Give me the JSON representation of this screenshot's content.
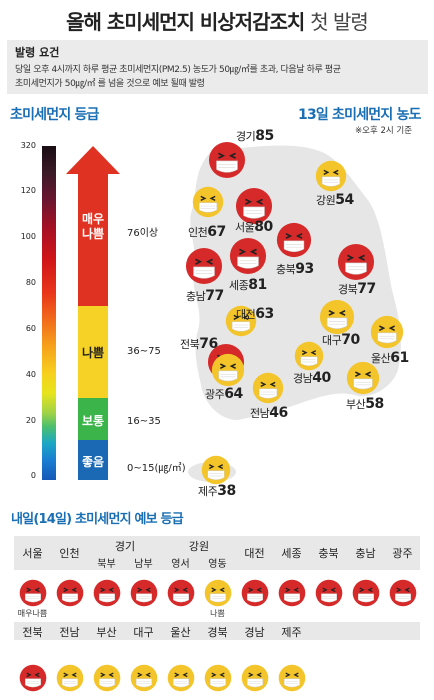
{
  "title": {
    "main": "올해 초미세먼지 비상저감조치",
    "suffix": "첫 발령"
  },
  "notice": {
    "heading": "발령 요건",
    "line1": "당일 오후 4시까지 하루 평균 초미세먼지(PM2.5) 농도가 50㎍/㎥를 초과, 다음날 하루 평균",
    "line2": "초미세먼지가 50㎍/㎥ 를 넘을 것으로 예보 될때 발령"
  },
  "scale": {
    "title": "초미세먼지 등급",
    "ticks": [
      "320",
      "120",
      "100",
      "80",
      "60",
      "40",
      "20",
      "0"
    ],
    "bands": [
      {
        "label": "매우\n나쁨",
        "range": "76이상",
        "color": "#e03222"
      },
      {
        "label": "나쁨",
        "range": "36~75",
        "color": "#f6d126"
      },
      {
        "label": "보통",
        "range": "16~35",
        "color": "#3bb54a"
      },
      {
        "label": "좋음",
        "range": "0~15(㎍/㎥)",
        "color": "#1b69b5"
      }
    ]
  },
  "map": {
    "title": "13일 초미세먼지 농도",
    "note": "※오후 2시 기준",
    "regions": [
      {
        "name": "경기",
        "value": "85",
        "grade": "very-bad"
      },
      {
        "name": "강원",
        "value": "54",
        "grade": "bad"
      },
      {
        "name": "인천",
        "value": "67",
        "grade": "bad"
      },
      {
        "name": "서울",
        "value": "80",
        "grade": "very-bad"
      },
      {
        "name": "충북",
        "value": "93",
        "grade": "very-bad"
      },
      {
        "name": "세종",
        "value": "81",
        "grade": "very-bad"
      },
      {
        "name": "충남",
        "value": "77",
        "grade": "very-bad"
      },
      {
        "name": "경북",
        "value": "77",
        "grade": "very-bad"
      },
      {
        "name": "대전",
        "value": "63",
        "grade": "bad"
      },
      {
        "name": "전북",
        "value": "76",
        "grade": "very-bad"
      },
      {
        "name": "대구",
        "value": "70",
        "grade": "bad"
      },
      {
        "name": "울산",
        "value": "61",
        "grade": "bad"
      },
      {
        "name": "경남",
        "value": "40",
        "grade": "bad"
      },
      {
        "name": "광주",
        "value": "64",
        "grade": "bad"
      },
      {
        "name": "전남",
        "value": "46",
        "grade": "bad"
      },
      {
        "name": "부산",
        "value": "58",
        "grade": "bad"
      },
      {
        "name": "제주",
        "value": "38",
        "grade": "bad"
      }
    ]
  },
  "forecast": {
    "title": "내일(14일) 초미세먼지 예보 등급",
    "row1": [
      {
        "label": "서울",
        "grade": "very-bad",
        "sub": "매우나쁨"
      },
      {
        "label": "인천",
        "grade": "very-bad"
      },
      {
        "group": "경기",
        "label": "북부",
        "grade": "very-bad"
      },
      {
        "group": "경기",
        "label": "남부",
        "grade": "very-bad"
      },
      {
        "group": "강원",
        "label": "영서",
        "grade": "very-bad"
      },
      {
        "group": "강원",
        "label": "영동",
        "grade": "bad",
        "sub": "나쁨"
      },
      {
        "label": "대전",
        "grade": "very-bad"
      },
      {
        "label": "세종",
        "grade": "very-bad"
      },
      {
        "label": "충북",
        "grade": "very-bad"
      },
      {
        "label": "충남",
        "grade": "very-bad"
      },
      {
        "label": "광주",
        "grade": "very-bad"
      }
    ],
    "groups": [
      {
        "name": "경기"
      },
      {
        "name": "강원"
      }
    ],
    "row2": [
      {
        "label": "전북",
        "grade": "very-bad"
      },
      {
        "label": "전남",
        "grade": "bad"
      },
      {
        "label": "부산",
        "grade": "bad"
      },
      {
        "label": "대구",
        "grade": "bad"
      },
      {
        "label": "울산",
        "grade": "bad"
      },
      {
        "label": "경북",
        "grade": "bad"
      },
      {
        "label": "경남",
        "grade": "bad"
      },
      {
        "label": "제주",
        "grade": "bad"
      }
    ]
  },
  "colors": {
    "accent": "#1a6fb4",
    "very_bad": "#d62a2a",
    "bad": "#f3c52a",
    "mask": "#ffffff"
  }
}
